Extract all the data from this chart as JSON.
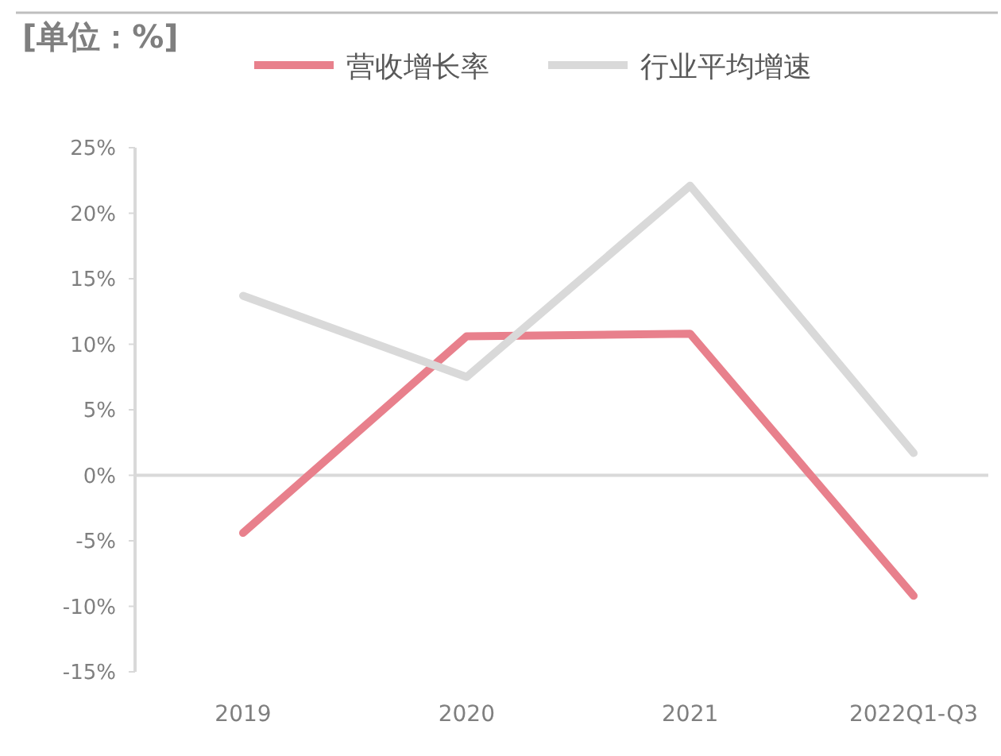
{
  "chart_data": {
    "type": "line",
    "title": "[单位：%]",
    "categories": [
      "2019",
      "2020",
      "2021",
      "2022Q1-Q3"
    ],
    "series": [
      {
        "name": "营收增长率",
        "color": "#e8808c",
        "values": [
          -4.4,
          10.6,
          10.8,
          -9.2
        ]
      },
      {
        "name": "行业平均增速",
        "color": "#d9d9d9",
        "values": [
          13.7,
          7.5,
          22.1,
          1.7
        ]
      }
    ],
    "ylim": [
      -15,
      25
    ],
    "yticks": [
      {
        "value": 25,
        "label": "25%"
      },
      {
        "value": 20,
        "label": "20%"
      },
      {
        "value": 15,
        "label": "15%"
      },
      {
        "value": 10,
        "label": "10%"
      },
      {
        "value": 5,
        "label": "5%"
      },
      {
        "value": 0,
        "label": "0%"
      },
      {
        "value": -5,
        "label": "-5%"
      },
      {
        "value": -10,
        "label": "-10%"
      },
      {
        "value": -15,
        "label": "-15%"
      }
    ],
    "legend": "top",
    "ref_lines": [
      {
        "axis": "y",
        "value": 0,
        "color": "#d9d9d9"
      }
    ],
    "marker": "none",
    "line_style": "solid"
  }
}
